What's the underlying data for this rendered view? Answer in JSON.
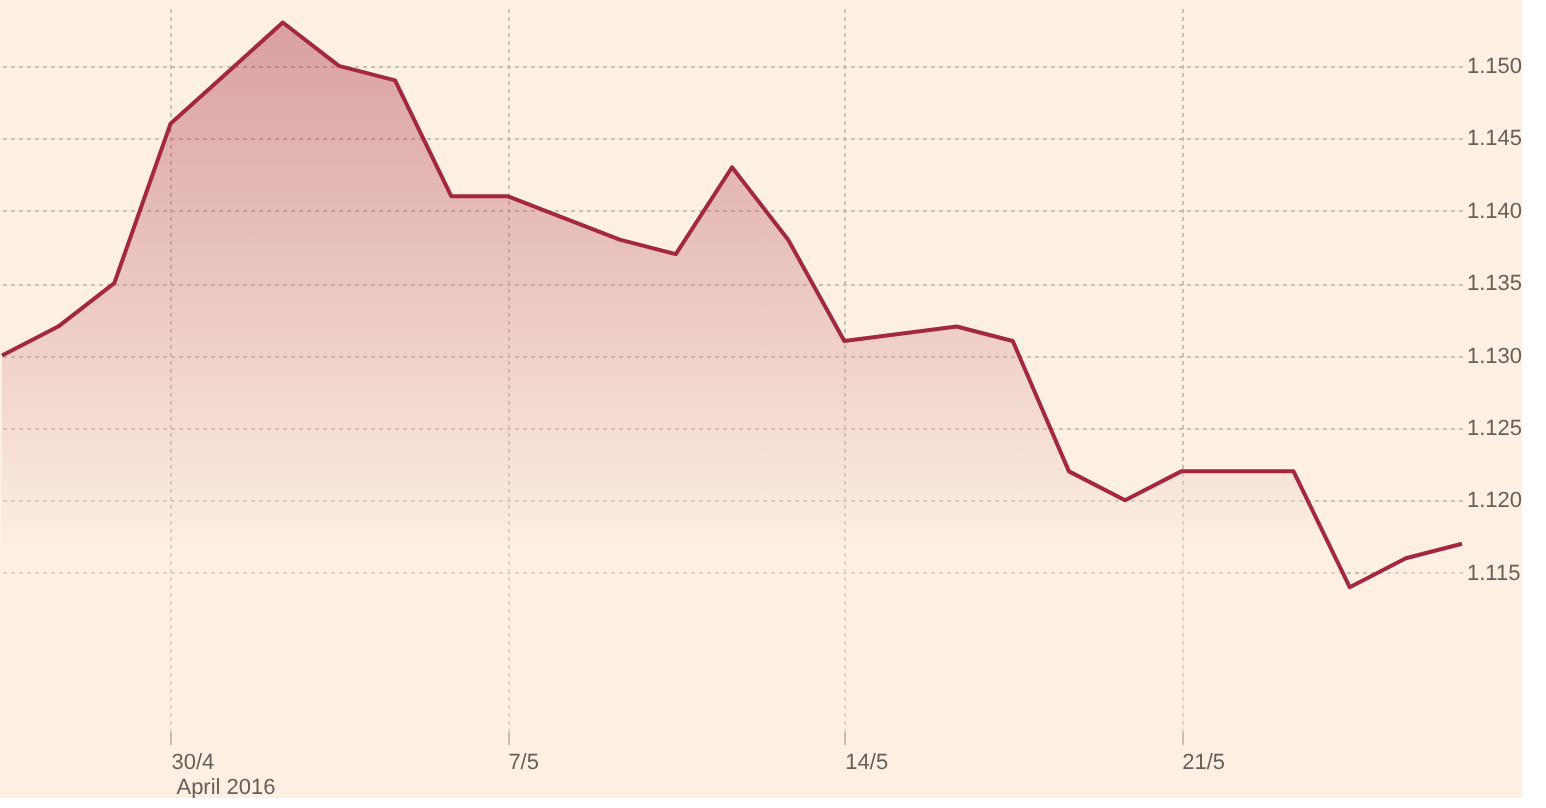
{
  "chart_data": {
    "type": "area",
    "categories": [
      null,
      null,
      null,
      "30/4",
      null,
      null,
      null,
      null,
      null,
      "7/5",
      null,
      null,
      null,
      null,
      null,
      "14/5",
      null,
      null,
      null,
      null,
      null,
      "21/5",
      null,
      null,
      null,
      null,
      null
    ],
    "series": [
      {
        "color": "#a3283f",
        "values": [
          1.13,
          1.132,
          1.135,
          1.146,
          1.1495,
          1.153,
          1.15,
          1.149,
          1.141,
          1.141,
          1.1395,
          1.138,
          1.137,
          1.143,
          1.138,
          1.131,
          1.1315,
          1.132,
          1.131,
          1.122,
          1.12,
          1.122,
          1.122,
          1.122,
          1.114,
          1.116,
          1.117
        ]
      }
    ],
    "annotations": [
      "April 2016"
    ],
    "ylim": [
      1.104,
      1.154
    ],
    "yticks": [
      {
        "value": 1.115,
        "label": "1.115"
      },
      {
        "value": 1.12,
        "label": "1.120"
      },
      {
        "value": 1.125,
        "label": "1.125"
      },
      {
        "value": 1.13,
        "label": "1.130"
      },
      {
        "value": 1.135,
        "label": "1.135"
      },
      {
        "value": 1.14,
        "label": "1.140"
      },
      {
        "value": 1.145,
        "label": "1.145"
      },
      {
        "value": 1.15,
        "label": "1.150"
      }
    ],
    "grid": true,
    "marker": "none",
    "line_style": "solid"
  }
}
